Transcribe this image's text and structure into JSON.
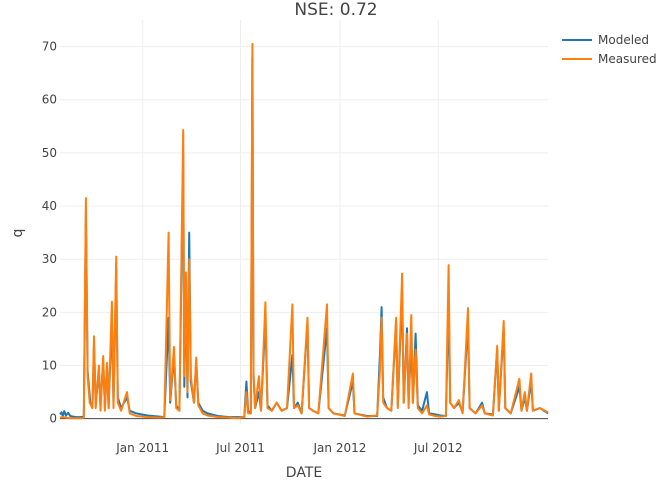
{
  "chart_data": {
    "type": "line",
    "title": "NSE:  0.72",
    "xlabel": "DATE",
    "ylabel": "q",
    "xlim": [
      "2010-08-01",
      "2013-01-20"
    ],
    "ylim": [
      -1,
      75
    ],
    "yticks": [
      0,
      10,
      20,
      30,
      40,
      50,
      60,
      70
    ],
    "xticks": [
      {
        "date": "2011-01-01",
        "label": "Jan 2011"
      },
      {
        "date": "2011-07-01",
        "label": "Jul 2011"
      },
      {
        "date": "2012-01-01",
        "label": "Jan 2012"
      },
      {
        "date": "2012-07-01",
        "label": "Jul 2012"
      }
    ],
    "grid": true,
    "legend_position": "top-right",
    "series": [
      {
        "name": "Modeled",
        "color": "#1f77b4",
        "points": [
          [
            "2010-08-01",
            0.8
          ],
          [
            "2010-08-04",
            1.2
          ],
          [
            "2010-08-06",
            0.5
          ],
          [
            "2010-08-09",
            1.4
          ],
          [
            "2010-08-12",
            0.6
          ],
          [
            "2010-08-16",
            1.1
          ],
          [
            "2010-08-20",
            0.5
          ],
          [
            "2010-08-25",
            0.4
          ],
          [
            "2010-09-01",
            0.3
          ],
          [
            "2010-09-08",
            0.3
          ],
          [
            "2010-09-14",
            0.4
          ],
          [
            "2010-09-18",
            39.0
          ],
          [
            "2010-09-21",
            9.0
          ],
          [
            "2010-09-26",
            3.0
          ],
          [
            "2010-09-30",
            2.0
          ],
          [
            "2010-10-03",
            14.0
          ],
          [
            "2010-10-06",
            3.0
          ],
          [
            "2010-10-12",
            9.0
          ],
          [
            "2010-10-15",
            2.5
          ],
          [
            "2010-10-20",
            11.0
          ],
          [
            "2010-10-23",
            2.0
          ],
          [
            "2010-10-27",
            10.0
          ],
          [
            "2010-10-30",
            2.0
          ],
          [
            "2010-11-05",
            19.0
          ],
          [
            "2010-11-08",
            3.0
          ],
          [
            "2010-11-13",
            28.0
          ],
          [
            "2010-11-16",
            4.0
          ],
          [
            "2010-11-22",
            2.0
          ],
          [
            "2010-12-03",
            4.0
          ],
          [
            "2010-12-08",
            1.5
          ],
          [
            "2010-12-20",
            1.0
          ],
          [
            "2011-01-10",
            0.6
          ],
          [
            "2011-02-01",
            0.4
          ],
          [
            "2011-02-10",
            0.3
          ],
          [
            "2011-02-18",
            19.0
          ],
          [
            "2011-02-21",
            3.0
          ],
          [
            "2011-02-28",
            12.0
          ],
          [
            "2011-03-04",
            2.5
          ],
          [
            "2011-03-10",
            1.5
          ],
          [
            "2011-03-17",
            50.0
          ],
          [
            "2011-03-19",
            6.0
          ],
          [
            "2011-03-22",
            25.0
          ],
          [
            "2011-03-25",
            4.0
          ],
          [
            "2011-03-28",
            35.0
          ],
          [
            "2011-03-31",
            7.0
          ],
          [
            "2011-04-06",
            3.0
          ],
          [
            "2011-04-10",
            11.0
          ],
          [
            "2011-04-14",
            3.0
          ],
          [
            "2011-04-22",
            1.5
          ],
          [
            "2011-05-01",
            1.0
          ],
          [
            "2011-05-20",
            0.5
          ],
          [
            "2011-06-10",
            0.3
          ],
          [
            "2011-06-25",
            0.3
          ],
          [
            "2011-07-08",
            0.3
          ],
          [
            "2011-07-12",
            7.0
          ],
          [
            "2011-07-15",
            1.5
          ],
          [
            "2011-07-20",
            1.0
          ],
          [
            "2011-07-23",
            68.0
          ],
          [
            "2011-07-25",
            8.0
          ],
          [
            "2011-07-28",
            2.0
          ],
          [
            "2011-08-04",
            5.0
          ],
          [
            "2011-08-08",
            1.5
          ],
          [
            "2011-08-16",
            19.0
          ],
          [
            "2011-08-20",
            2.5
          ],
          [
            "2011-08-28",
            1.5
          ],
          [
            "2011-09-06",
            3.0
          ],
          [
            "2011-09-15",
            1.5
          ],
          [
            "2011-09-25",
            2.0
          ],
          [
            "2011-10-05",
            12.0
          ],
          [
            "2011-10-08",
            2.0
          ],
          [
            "2011-10-15",
            3.0
          ],
          [
            "2011-10-22",
            1.0
          ],
          [
            "2011-11-02",
            18.0
          ],
          [
            "2011-11-05",
            2.0
          ],
          [
            "2011-11-12",
            1.5
          ],
          [
            "2011-11-22",
            1.0
          ],
          [
            "2011-12-08",
            17.0
          ],
          [
            "2011-12-11",
            2.0
          ],
          [
            "2011-12-20",
            1.0
          ],
          [
            "2012-01-10",
            0.6
          ],
          [
            "2012-01-25",
            7.0
          ],
          [
            "2012-01-28",
            1.0
          ],
          [
            "2012-02-20",
            0.5
          ],
          [
            "2012-03-10",
            0.5
          ],
          [
            "2012-03-15",
            12.0
          ],
          [
            "2012-03-18",
            21.0
          ],
          [
            "2012-03-21",
            4.0
          ],
          [
            "2012-03-28",
            2.0
          ],
          [
            "2012-04-05",
            1.5
          ],
          [
            "2012-04-14",
            18.0
          ],
          [
            "2012-04-17",
            2.5
          ],
          [
            "2012-04-25",
            24.0
          ],
          [
            "2012-04-28",
            3.0
          ],
          [
            "2012-05-04",
            17.0
          ],
          [
            "2012-05-07",
            3.0
          ],
          [
            "2012-05-12",
            15.0
          ],
          [
            "2012-05-15",
            3.0
          ],
          [
            "2012-05-20",
            16.0
          ],
          [
            "2012-05-24",
            2.5
          ],
          [
            "2012-06-01",
            1.5
          ],
          [
            "2012-06-10",
            5.0
          ],
          [
            "2012-06-14",
            1.0
          ],
          [
            "2012-06-25",
            0.8
          ],
          [
            "2012-07-05",
            0.6
          ],
          [
            "2012-07-15",
            0.5
          ],
          [
            "2012-07-20",
            22.0
          ],
          [
            "2012-07-23",
            3.0
          ],
          [
            "2012-07-30",
            2.0
          ],
          [
            "2012-08-08",
            3.0
          ],
          [
            "2012-08-15",
            1.2
          ],
          [
            "2012-08-25",
            18.0
          ],
          [
            "2012-08-28",
            2.0
          ],
          [
            "2012-09-08",
            1.0
          ],
          [
            "2012-09-20",
            3.0
          ],
          [
            "2012-09-25",
            1.0
          ],
          [
            "2012-10-10",
            0.8
          ],
          [
            "2012-10-18",
            13.0
          ],
          [
            "2012-10-21",
            1.5
          ],
          [
            "2012-10-30",
            17.0
          ],
          [
            "2012-11-02",
            2.0
          ],
          [
            "2012-11-12",
            1.0
          ],
          [
            "2012-11-28",
            6.0
          ],
          [
            "2012-12-02",
            1.5
          ],
          [
            "2012-12-08",
            4.0
          ],
          [
            "2012-12-12",
            1.5
          ],
          [
            "2012-12-20",
            7.0
          ],
          [
            "2012-12-23",
            1.5
          ],
          [
            "2013-01-05",
            2.0
          ],
          [
            "2013-01-20",
            1.0
          ]
        ]
      },
      {
        "name": "Measured",
        "color": "#ff7f0e",
        "points": [
          [
            "2010-08-01",
            0.2
          ],
          [
            "2010-08-06",
            0.3
          ],
          [
            "2010-08-12",
            0.2
          ],
          [
            "2010-08-20",
            0.1
          ],
          [
            "2010-09-01",
            0.1
          ],
          [
            "2010-09-10",
            0.1
          ],
          [
            "2010-09-14",
            0.2
          ],
          [
            "2010-09-18",
            41.5
          ],
          [
            "2010-09-21",
            8.0
          ],
          [
            "2010-09-25",
            3.0
          ],
          [
            "2010-09-30",
            2.0
          ],
          [
            "2010-10-03",
            15.5
          ],
          [
            "2010-10-06",
            2.0
          ],
          [
            "2010-10-12",
            10.0
          ],
          [
            "2010-10-15",
            1.5
          ],
          [
            "2010-10-20",
            11.8
          ],
          [
            "2010-10-23",
            1.5
          ],
          [
            "2010-10-27",
            10.5
          ],
          [
            "2010-10-30",
            2.0
          ],
          [
            "2010-11-05",
            22.0
          ],
          [
            "2010-11-08",
            2.0
          ],
          [
            "2010-11-13",
            30.5
          ],
          [
            "2010-11-16",
            3.0
          ],
          [
            "2010-11-22",
            1.5
          ],
          [
            "2010-12-03",
            5.0
          ],
          [
            "2010-12-08",
            1.0
          ],
          [
            "2010-12-20",
            0.5
          ],
          [
            "2011-01-10",
            0.3
          ],
          [
            "2011-02-01",
            0.2
          ],
          [
            "2011-02-10",
            0.3
          ],
          [
            "2011-02-18",
            35.0
          ],
          [
            "2011-02-21",
            3.5
          ],
          [
            "2011-02-28",
            13.5
          ],
          [
            "2011-03-04",
            2.0
          ],
          [
            "2011-03-10",
            1.5
          ],
          [
            "2011-03-17",
            54.3
          ],
          [
            "2011-03-19",
            8.0
          ],
          [
            "2011-03-22",
            27.5
          ],
          [
            "2011-03-25",
            5.0
          ],
          [
            "2011-03-28",
            30.0
          ],
          [
            "2011-03-31",
            8.0
          ],
          [
            "2011-04-06",
            3.0
          ],
          [
            "2011-04-10",
            11.5
          ],
          [
            "2011-04-14",
            2.5
          ],
          [
            "2011-04-22",
            1.0
          ],
          [
            "2011-05-01",
            0.6
          ],
          [
            "2011-05-20",
            0.3
          ],
          [
            "2011-06-10",
            0.2
          ],
          [
            "2011-06-25",
            0.1
          ],
          [
            "2011-07-08",
            0.3
          ],
          [
            "2011-07-12",
            5.0
          ],
          [
            "2011-07-15",
            1.0
          ],
          [
            "2011-07-20",
            1.0
          ],
          [
            "2011-07-23",
            70.5
          ],
          [
            "2011-07-25",
            9.0
          ],
          [
            "2011-07-28",
            2.0
          ],
          [
            "2011-08-04",
            8.0
          ],
          [
            "2011-08-08",
            1.5
          ],
          [
            "2011-08-16",
            21.9
          ],
          [
            "2011-08-20",
            2.0
          ],
          [
            "2011-08-28",
            1.5
          ],
          [
            "2011-09-06",
            3.0
          ],
          [
            "2011-09-15",
            1.5
          ],
          [
            "2011-09-25",
            2.0
          ],
          [
            "2011-10-05",
            21.5
          ],
          [
            "2011-10-08",
            2.0
          ],
          [
            "2011-10-15",
            2.5
          ],
          [
            "2011-10-22",
            1.0
          ],
          [
            "2011-11-02",
            19.0
          ],
          [
            "2011-11-05",
            2.0
          ],
          [
            "2011-11-12",
            1.5
          ],
          [
            "2011-11-22",
            1.0
          ],
          [
            "2011-12-08",
            21.5
          ],
          [
            "2011-12-11",
            2.0
          ],
          [
            "2011-12-20",
            1.0
          ],
          [
            "2012-01-10",
            0.5
          ],
          [
            "2012-01-25",
            8.5
          ],
          [
            "2012-01-28",
            1.0
          ],
          [
            "2012-02-20",
            0.4
          ],
          [
            "2012-03-10",
            0.6
          ],
          [
            "2012-03-15",
            9.0
          ],
          [
            "2012-03-18",
            19.0
          ],
          [
            "2012-03-21",
            3.0
          ],
          [
            "2012-03-28",
            2.0
          ],
          [
            "2012-04-05",
            1.5
          ],
          [
            "2012-04-14",
            19.0
          ],
          [
            "2012-04-17",
            2.0
          ],
          [
            "2012-04-25",
            27.3
          ],
          [
            "2012-04-28",
            3.0
          ],
          [
            "2012-05-04",
            16.0
          ],
          [
            "2012-05-07",
            2.0
          ],
          [
            "2012-05-12",
            19.5
          ],
          [
            "2012-05-15",
            3.0
          ],
          [
            "2012-05-20",
            13.0
          ],
          [
            "2012-05-24",
            2.0
          ],
          [
            "2012-06-01",
            1.0
          ],
          [
            "2012-06-10",
            2.5
          ],
          [
            "2012-06-14",
            0.8
          ],
          [
            "2012-06-25",
            0.5
          ],
          [
            "2012-07-05",
            0.4
          ],
          [
            "2012-07-15",
            0.5
          ],
          [
            "2012-07-20",
            28.9
          ],
          [
            "2012-07-23",
            3.0
          ],
          [
            "2012-07-30",
            2.0
          ],
          [
            "2012-08-08",
            3.5
          ],
          [
            "2012-08-15",
            1.0
          ],
          [
            "2012-08-25",
            20.8
          ],
          [
            "2012-08-28",
            2.0
          ],
          [
            "2012-09-08",
            1.0
          ],
          [
            "2012-09-20",
            2.5
          ],
          [
            "2012-09-25",
            1.0
          ],
          [
            "2012-10-10",
            0.6
          ],
          [
            "2012-10-18",
            13.7
          ],
          [
            "2012-10-21",
            1.5
          ],
          [
            "2012-10-30",
            18.4
          ],
          [
            "2012-11-02",
            2.0
          ],
          [
            "2012-11-12",
            1.0
          ],
          [
            "2012-11-28",
            7.5
          ],
          [
            "2012-12-02",
            1.5
          ],
          [
            "2012-12-08",
            5.0
          ],
          [
            "2012-12-12",
            1.5
          ],
          [
            "2012-12-20",
            8.5
          ],
          [
            "2012-12-23",
            1.5
          ],
          [
            "2013-01-05",
            2.0
          ],
          [
            "2013-01-20",
            1.2
          ]
        ]
      }
    ]
  }
}
